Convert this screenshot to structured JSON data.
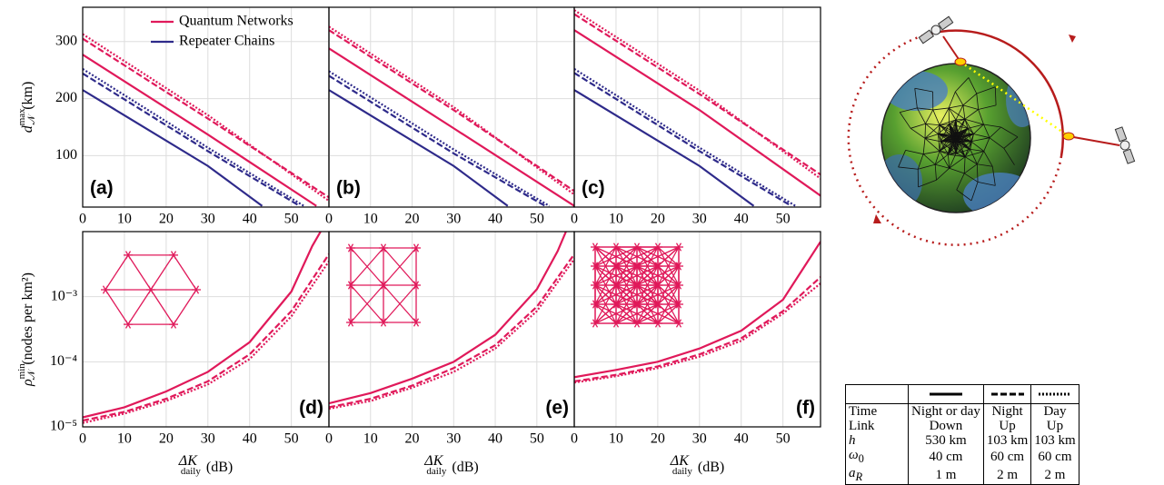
{
  "chart_data": [
    {
      "type": "line",
      "panel_label": "(a)",
      "legend": "top",
      "xlim": [
        0,
        59
      ],
      "xticks": [
        0,
        10,
        20,
        30,
        40,
        50
      ],
      "ylim": [
        10,
        360
      ],
      "yticks": [
        100,
        200,
        300
      ],
      "y_label": {
        "symbol": "d",
        "sup": "max",
        "sub": "𝒩",
        "unit": "(km)"
      },
      "series": [
        {
          "name": "Quantum Networks",
          "color": "#e0195a",
          "dash": "solid",
          "x": [
            0,
            30,
            56
          ],
          "values": [
            277,
            137,
            12
          ]
        },
        {
          "color": "#e0195a",
          "dash": "dashed",
          "x": [
            0,
            30,
            59
          ],
          "values": [
            305,
            165,
            27
          ]
        },
        {
          "color": "#e0195a",
          "dash": "dotted",
          "x": [
            0,
            30,
            59
          ],
          "values": [
            313,
            171,
            21
          ]
        },
        {
          "name": "Repeater Chains",
          "color": "#2e2a8a",
          "dash": "solid",
          "x": [
            0,
            30,
            43
          ],
          "values": [
            215,
            82,
            12
          ]
        },
        {
          "color": "#2e2a8a",
          "dash": "dashed",
          "x": [
            0,
            30,
            52
          ],
          "values": [
            244,
            108,
            12
          ]
        },
        {
          "color": "#2e2a8a",
          "dash": "dotted",
          "x": [
            0,
            30,
            53
          ],
          "values": [
            252,
            114,
            12
          ]
        }
      ]
    },
    {
      "type": "line",
      "panel_label": "(b)",
      "xlim": [
        0,
        59
      ],
      "xticks": [
        0,
        10,
        20,
        30,
        40,
        50
      ],
      "ylim": [
        10,
        360
      ],
      "series": [
        {
          "color": "#e0195a",
          "dash": "solid",
          "x": [
            0,
            30,
            59
          ],
          "values": [
            288,
            148,
            12
          ]
        },
        {
          "color": "#e0195a",
          "dash": "dashed",
          "x": [
            0,
            30,
            59
          ],
          "values": [
            320,
            180,
            38
          ]
        },
        {
          "color": "#e0195a",
          "dash": "dotted",
          "x": [
            0,
            30,
            59
          ],
          "values": [
            326,
            185,
            32
          ]
        },
        {
          "color": "#2e2a8a",
          "dash": "solid",
          "x": [
            0,
            30,
            43
          ],
          "values": [
            215,
            82,
            12
          ]
        },
        {
          "color": "#2e2a8a",
          "dash": "dashed",
          "x": [
            0,
            30,
            52
          ],
          "values": [
            240,
            104,
            12
          ]
        },
        {
          "color": "#2e2a8a",
          "dash": "dotted",
          "x": [
            0,
            30,
            53
          ],
          "values": [
            248,
            111,
            12
          ]
        }
      ]
    },
    {
      "type": "line",
      "panel_label": "(c)",
      "xlim": [
        0,
        59
      ],
      "xticks": [
        0,
        10,
        20,
        30,
        40,
        50
      ],
      "ylim": [
        10,
        360
      ],
      "series": [
        {
          "color": "#e0195a",
          "dash": "solid",
          "x": [
            0,
            30,
            59
          ],
          "values": [
            320,
            180,
            30
          ]
        },
        {
          "color": "#e0195a",
          "dash": "dashed",
          "x": [
            0,
            30,
            59
          ],
          "values": [
            348,
            208,
            67
          ]
        },
        {
          "color": "#e0195a",
          "dash": "dotted",
          "x": [
            0,
            30,
            59
          ],
          "values": [
            355,
            214,
            60
          ]
        },
        {
          "color": "#2e2a8a",
          "dash": "solid",
          "x": [
            0,
            30,
            43
          ],
          "values": [
            215,
            82,
            12
          ]
        },
        {
          "color": "#2e2a8a",
          "dash": "dashed",
          "x": [
            0,
            30,
            52
          ],
          "values": [
            245,
            108,
            12
          ]
        },
        {
          "color": "#2e2a8a",
          "dash": "dotted",
          "x": [
            0,
            30,
            53
          ],
          "values": [
            252,
            114,
            12
          ]
        }
      ]
    },
    {
      "type": "line",
      "panel_label": "(d)",
      "log_y": true,
      "xlim": [
        0,
        59
      ],
      "xticks": [
        0,
        10,
        20,
        30,
        40,
        50
      ],
      "ylim": [
        1e-05,
        0.01
      ],
      "yticks": [
        {
          "value": 1e-05,
          "label": "10⁻⁵"
        },
        {
          "value": 0.0001,
          "label": "10⁻⁴"
        },
        {
          "value": 0.001,
          "label": "10⁻³"
        }
      ],
      "y_label": {
        "symbol": "ρ",
        "sup": "min",
        "sub": "𝒩",
        "unit": "(nodes per km²)"
      },
      "x_label": {
        "symbol": "ΔK",
        "sub": "daily",
        "unit": "(dB)"
      },
      "series": [
        {
          "color": "#e0195a",
          "dash": "solid",
          "x": [
            0,
            10,
            20,
            30,
            40,
            50,
            55,
            57
          ],
          "values": [
            1.4e-05,
            2e-05,
            3.5e-05,
            7e-05,
            0.0002,
            0.0012,
            0.006,
            0.01
          ]
        },
        {
          "color": "#e0195a",
          "dash": "dashed",
          "x": [
            0,
            10,
            20,
            30,
            40,
            50,
            59
          ],
          "values": [
            1.25e-05,
            1.7e-05,
            2.7e-05,
            5e-05,
            0.00013,
            0.0006,
            0.0045
          ]
        },
        {
          "color": "#e0195a",
          "dash": "dotted",
          "x": [
            0,
            10,
            20,
            30,
            40,
            50,
            59
          ],
          "values": [
            1.15e-05,
            1.6e-05,
            2.5e-05,
            4.5e-05,
            0.00011,
            0.0005,
            0.0035
          ]
        }
      ]
    },
    {
      "type": "line",
      "panel_label": "(e)",
      "log_y": true,
      "xlim": [
        0,
        59
      ],
      "xticks": [
        0,
        10,
        20,
        30,
        40,
        50
      ],
      "ylim": [
        1e-05,
        0.01
      ],
      "x_label": {
        "symbol": "ΔK",
        "sub": "daily",
        "unit": "(dB)"
      },
      "series": [
        {
          "color": "#e0195a",
          "dash": "solid",
          "x": [
            0,
            10,
            20,
            30,
            40,
            50,
            55,
            57
          ],
          "values": [
            2.3e-05,
            3.3e-05,
            5.5e-05,
            0.0001,
            0.00026,
            0.0013,
            0.005,
            0.01
          ]
        },
        {
          "color": "#e0195a",
          "dash": "dashed",
          "x": [
            0,
            10,
            20,
            30,
            40,
            50,
            59
          ],
          "values": [
            2e-05,
            2.7e-05,
            4.3e-05,
            8e-05,
            0.00018,
            0.0007,
            0.0045
          ]
        },
        {
          "color": "#e0195a",
          "dash": "dotted",
          "x": [
            0,
            10,
            20,
            30,
            40,
            50,
            59
          ],
          "values": [
            1.9e-05,
            2.5e-05,
            4e-05,
            7e-05,
            0.00016,
            0.0006,
            0.0038
          ]
        }
      ]
    },
    {
      "type": "line",
      "panel_label": "(f)",
      "log_y": true,
      "xlim": [
        0,
        59
      ],
      "xticks": [
        0,
        10,
        20,
        30,
        40,
        50
      ],
      "ylim": [
        1e-05,
        0.01
      ],
      "x_label": {
        "symbol": "ΔK",
        "sub": "daily",
        "unit": "(dB)"
      },
      "series": [
        {
          "color": "#e0195a",
          "dash": "solid",
          "x": [
            0,
            10,
            20,
            30,
            40,
            50,
            59
          ],
          "values": [
            5.8e-05,
            7.5e-05,
            0.0001,
            0.00016,
            0.0003,
            0.0009,
            0.007
          ]
        },
        {
          "color": "#e0195a",
          "dash": "dashed",
          "x": [
            0,
            10,
            20,
            30,
            40,
            50,
            59
          ],
          "values": [
            5e-05,
            6.3e-05,
            8.5e-05,
            0.00013,
            0.00023,
            0.0006,
            0.002
          ]
        },
        {
          "color": "#e0195a",
          "dash": "dotted",
          "x": [
            0,
            10,
            20,
            30,
            40,
            50,
            59
          ],
          "values": [
            4.8e-05,
            6e-05,
            8e-05,
            0.00012,
            0.00021,
            0.00055,
            0.0016
          ]
        }
      ]
    }
  ],
  "table": {
    "rows": [
      [
        "Time",
        "Night or day",
        "Night",
        "Day"
      ],
      [
        "Link",
        "Down",
        "Up",
        "Up"
      ],
      [
        {
          "symbol": "h"
        },
        "530 km",
        "103 km",
        "103 km"
      ],
      [
        {
          "symbol": "ω",
          "sub": "0"
        },
        "40 cm",
        "60 cm",
        "60 cm"
      ],
      [
        {
          "symbol": "a",
          "sub": "R"
        },
        "1 m",
        "2 m",
        "2 m"
      ]
    ]
  }
}
